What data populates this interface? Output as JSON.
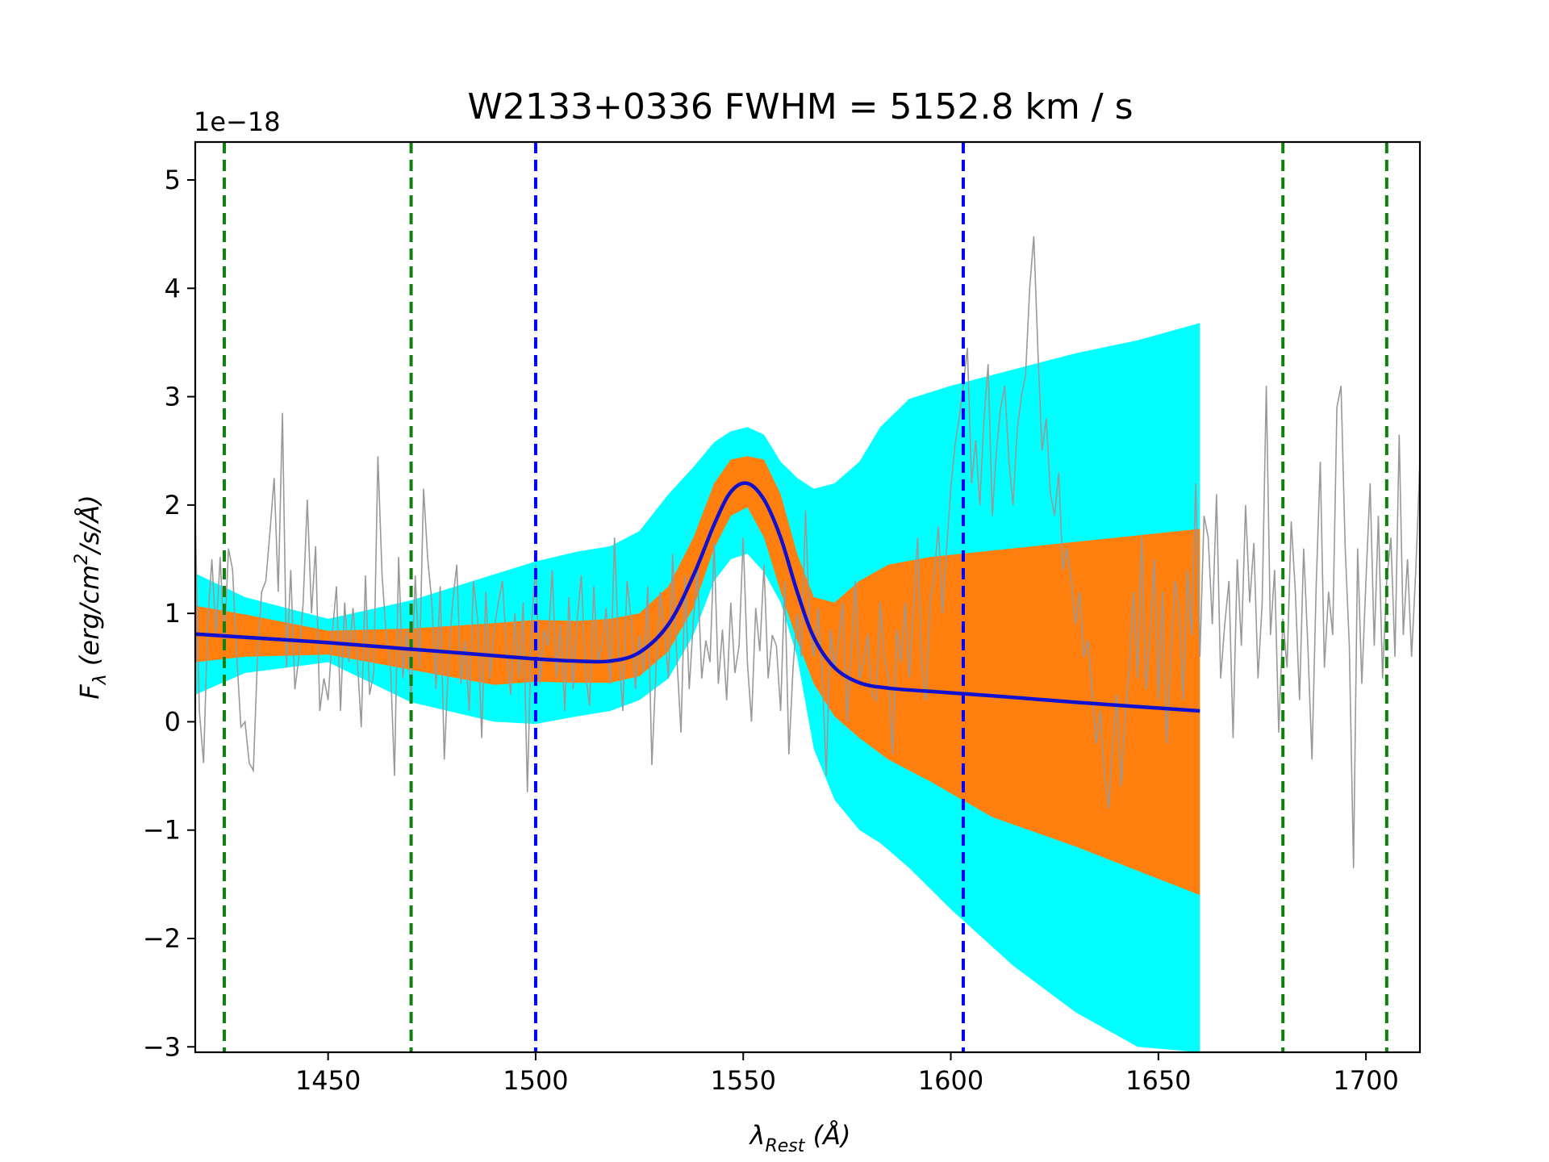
{
  "chart_data": {
    "type": "line",
    "title": "W2133+0336  FWHM = 5152.8 km / s",
    "xlabel": "λRest (Å)",
    "ylabel": "Fλ (erg/cm²/s/Å)",
    "xlabel_parts": {
      "sym": "λ",
      "sub": "Rest",
      "rest": " (Å)"
    },
    "ylabel_parts": {
      "sym": "F",
      "sub": "λ",
      "open": " (erg/cm",
      "sup": "2",
      "close": "/s/Å)"
    },
    "offset_label": "1e−18",
    "xlim": [
      1418,
      1713
    ],
    "ylim": [
      -3.05,
      5.35
    ],
    "x_ticks": [
      1450,
      1500,
      1550,
      1600,
      1650,
      1700
    ],
    "x_tick_labels": [
      "1450",
      "1500",
      "1550",
      "1600",
      "1650",
      "1700"
    ],
    "y_ticks": [
      -3,
      -2,
      -1,
      0,
      1,
      2,
      3,
      4,
      5
    ],
    "y_tick_labels": [
      "−3",
      "−2",
      "−1",
      "0",
      "1",
      "2",
      "3",
      "4",
      "5"
    ],
    "grid": false,
    "colors": {
      "outer_band": "#00ffff",
      "inner_band": "#ff7f0e",
      "fit_line": "#1010d0",
      "spectrum": "#999999",
      "green_lines": "#108010",
      "blue_lines": "#0000ff"
    },
    "vlines_green": [
      1425,
      1470,
      1680,
      1705
    ],
    "vlines_blue": [
      1500,
      1603
    ],
    "series": [],
    "fit_model": {
      "x": [
        1418,
        1430,
        1450,
        1470,
        1490,
        1500,
        1510,
        1518,
        1525,
        1532,
        1538,
        1543,
        1547,
        1551,
        1555,
        1559,
        1563,
        1567,
        1572,
        1578,
        1585,
        1595,
        1610,
        1630,
        1660
      ],
      "y": [
        0.81,
        0.78,
        0.73,
        0.67,
        0.61,
        0.58,
        0.56,
        0.56,
        0.64,
        0.9,
        1.35,
        1.82,
        2.12,
        2.2,
        2.05,
        1.7,
        1.2,
        0.78,
        0.5,
        0.36,
        0.31,
        0.28,
        0.24,
        0.18,
        0.1
      ]
    },
    "inner_band": {
      "x": [
        1418,
        1430,
        1450,
        1470,
        1490,
        1500,
        1510,
        1518,
        1525,
        1532,
        1538,
        1543,
        1547,
        1551,
        1555,
        1559,
        1563,
        1567,
        1572,
        1578,
        1585,
        1595,
        1610,
        1630,
        1660
      ],
      "upper": [
        1.07,
        0.99,
        0.84,
        0.86,
        0.91,
        0.94,
        0.93,
        0.95,
        1.0,
        1.25,
        1.7,
        2.2,
        2.42,
        2.45,
        2.42,
        2.1,
        1.55,
        1.15,
        1.1,
        1.3,
        1.45,
        1.52,
        1.58,
        1.66,
        1.78
      ],
      "lower": [
        0.55,
        0.6,
        0.62,
        0.48,
        0.34,
        0.37,
        0.36,
        0.36,
        0.42,
        0.65,
        1.05,
        1.6,
        1.9,
        1.98,
        1.7,
        1.2,
        0.75,
        0.35,
        0.05,
        -0.15,
        -0.35,
        -0.55,
        -0.88,
        -1.15,
        -1.6
      ]
    },
    "outer_band": {
      "x": [
        1418,
        1430,
        1450,
        1470,
        1490,
        1500,
        1510,
        1518,
        1525,
        1532,
        1538,
        1543,
        1547,
        1551,
        1555,
        1559,
        1563,
        1567,
        1572,
        1578,
        1583,
        1590,
        1600,
        1615,
        1630,
        1645,
        1660
      ],
      "upper": [
        1.37,
        1.15,
        0.95,
        1.12,
        1.36,
        1.48,
        1.57,
        1.62,
        1.76,
        2.1,
        2.35,
        2.58,
        2.68,
        2.72,
        2.65,
        2.4,
        2.25,
        2.15,
        2.2,
        2.4,
        2.72,
        2.98,
        3.1,
        3.25,
        3.4,
        3.52,
        3.68
      ],
      "lower": [
        0.25,
        0.45,
        0.55,
        0.18,
        0.0,
        -0.02,
        0.05,
        0.1,
        0.2,
        0.4,
        0.8,
        1.3,
        1.5,
        1.55,
        1.38,
        1.1,
        0.6,
        -0.25,
        -0.72,
        -1.0,
        -1.12,
        -1.35,
        -1.73,
        -2.25,
        -2.68,
        -3.0,
        -3.05
      ]
    },
    "spectrum": {
      "x_start": 1418,
      "x_step": 1,
      "y": [
        1.9,
        0.1,
        -0.38,
        0.9,
        1.5,
        0.8,
        1.52,
        0.7,
        1.6,
        1.4,
        0.6,
        -0.05,
        0.0,
        -0.38,
        -0.45,
        0.6,
        1.2,
        1.3,
        1.75,
        2.25,
        1.2,
        2.85,
        0.5,
        1.4,
        0.3,
        0.6,
        1.1,
        2.05,
        1.0,
        1.62,
        0.1,
        0.4,
        0.2,
        0.8,
        1.25,
        0.1,
        1.1,
        0.55,
        1.05,
        0.6,
        -0.05,
        1.35,
        0.25,
        0.45,
        2.45,
        1.35,
        0.8,
        0.55,
        -0.5,
        1.52,
        0.4,
        0.85,
        0.2,
        1.35,
        0.5,
        2.15,
        1.5,
        1.1,
        0.3,
        1.25,
        -0.35,
        0.55,
        1.1,
        1.45,
        0.35,
        0.75,
        0.1,
        1.3,
        0.95,
        -0.15,
        1.2,
        0.4,
        0.85,
        1.1,
        1.3,
        0.65,
        0.25,
        1.0,
        0.4,
        1.1,
        -0.65,
        0.9,
        1.45,
        0.35,
        0.85,
        0.7,
        1.4,
        0.4,
        0.9,
        0.1,
        1.15,
        0.3,
        0.95,
        1.35,
        0.45,
        0.15,
        1.25,
        0.55,
        0.7,
        1.05,
        0.35,
        1.7,
        0.65,
        0.1,
        1.3,
        0.95,
        0.3,
        0.8,
        0.45,
        1.25,
        -0.4,
        0.5,
        1.2,
        0.85,
        0.4,
        1.55,
        0.6,
        -0.1,
        1.35,
        0.3,
        0.95,
        1.4,
        0.4,
        0.75,
        0.55,
        1.65,
        0.35,
        0.85,
        0.2,
        1.1,
        0.45,
        0.7,
        1.7,
        0.55,
        0.0,
        1.05,
        0.65,
        1.45,
        0.4,
        0.8,
        0.7,
        0.1,
        1.3,
        -0.3,
        0.5,
        1.0,
        0.6,
        1.95,
        0.9,
        0.6,
        1.05,
        0.45,
        -0.5,
        0.85,
        0.5,
        0.75,
        1.1,
        0.0,
        0.65,
        1.3,
        0.4,
        0.55,
        0.8,
        0.25,
        0.2,
        1.1,
        0.6,
        0.4,
        -0.3,
        0.85,
        0.55,
        1.1,
        0.4,
        1.05,
        1.7,
        0.5,
        0.2,
        1.1,
        1.35,
        1.8,
        1.0,
        1.6,
        2.15,
        2.55,
        2.8,
        3.1,
        3.45,
        2.2,
        2.6,
        2.0,
        2.8,
        3.3,
        1.9,
        2.5,
        2.9,
        3.1,
        2.4,
        2.0,
        2.7,
        3.0,
        3.2,
        4.0,
        4.48,
        3.4,
        2.5,
        2.8,
        2.1,
        1.9,
        2.3,
        1.4,
        1.6,
        1.3,
        0.9,
        1.2,
        0.6,
        0.75,
        0.3,
        -0.2,
        0.1,
        -0.5,
        -0.8,
        -0.2,
        0.25,
        -0.6,
        0.05,
        0.5,
        1.2,
        0.4,
        1.7,
        0.3,
        0.8,
        1.5,
        0.2,
        1.2,
        -0.2,
        0.6,
        1.3,
        1.05,
        0.2,
        1.4,
        0.8,
        2.2,
        0.6,
        1.9,
        1.7,
        0.9,
        2.1,
        0.4,
        0.9,
        1.3,
        -0.15,
        1.5,
        0.7,
        2.0,
        1.1,
        1.65,
        0.4,
        1.1,
        3.1,
        0.8,
        1.4,
        -0.1,
        0.95,
        0.5,
        1.85,
        1.2,
        0.2,
        1.6,
        0.7,
        -0.35,
        1.25,
        2.4,
        0.5,
        1.2,
        0.8,
        2.9,
        3.1,
        1.6,
        0.7,
        -1.35,
        1.6,
        0.35,
        1.3,
        2.2,
        0.7,
        1.9,
        0.4,
        1.3,
        1.7,
        0.6,
        2.65,
        0.8,
        1.5,
        0.6,
        1.4,
        2.4,
        0.9,
        1.2,
        0.3,
        2.1,
        1.4,
        0.8,
        1.6,
        2.3,
        0.6,
        1.0,
        2.1,
        1.2,
        0.5,
        1.5,
        2.1,
        0.4,
        1.2,
        1.9,
        0.7,
        1.2,
        2.7,
        3.0,
        0.9,
        1.7,
        1.1,
        0.2,
        1.5,
        2.4,
        0.9,
        1.2,
        2.2,
        0.7,
        1.4,
        1.7,
        0.7,
        1.2,
        2.05,
        0.5,
        1.0,
        2.2,
        1.4,
        0.6,
        3.98,
        0.8,
        1.6,
        1.1,
        0.4,
        1.3,
        1.6,
        0.5,
        1.2,
        1.4,
        0.5,
        1.05,
        1.6,
        1.2
      ]
    }
  }
}
